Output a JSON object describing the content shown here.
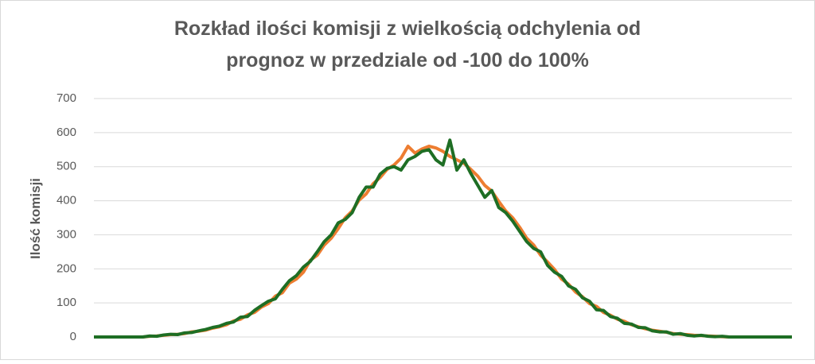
{
  "chart_data": {
    "type": "line",
    "title": [
      "Rozkład ilości komisji z wielkością odchylenia od",
      "prognoz w przedziale od -100 do 100%"
    ],
    "y_label": "Ilość komisji",
    "ylim": [
      0,
      700
    ],
    "yticks": [
      0,
      100,
      200,
      300,
      400,
      500,
      600,
      700
    ],
    "grid": true,
    "series": [
      {
        "color": "#ed7d31",
        "values": [
          0,
          0,
          0,
          0,
          0,
          0,
          0,
          0,
          2,
          3,
          5,
          7,
          8,
          10,
          15,
          17,
          20,
          26,
          30,
          36,
          47,
          52,
          65,
          72,
          88,
          98,
          120,
          130,
          158,
          170,
          190,
          225,
          240,
          270,
          290,
          318,
          350,
          370,
          402,
          420,
          450,
          468,
          492,
          505,
          525,
          560,
          540,
          552,
          560,
          555,
          545,
          530,
          520,
          510,
          492,
          472,
          445,
          428,
          398,
          370,
          350,
          322,
          290,
          270,
          240,
          220,
          198,
          170,
          155,
          132,
          118,
          98,
          90,
          72,
          64,
          52,
          46,
          36,
          30,
          24,
          20,
          17,
          14,
          10,
          8,
          7,
          5,
          4,
          3,
          2,
          1,
          0,
          0,
          0,
          0,
          0,
          0,
          0,
          0,
          0,
          0
        ]
      },
      {
        "color": "#1e6e24",
        "values": [
          0,
          0,
          0,
          0,
          0,
          0,
          0,
          0,
          3,
          2,
          6,
          8,
          7,
          12,
          13,
          18,
          22,
          28,
          32,
          40,
          44,
          58,
          60,
          78,
          92,
          105,
          112,
          140,
          165,
          180,
          205,
          222,
          250,
          280,
          300,
          335,
          345,
          365,
          410,
          440,
          440,
          478,
          495,
          500,
          490,
          520,
          530,
          545,
          550,
          520,
          505,
          578,
          490,
          520,
          480,
          445,
          410,
          430,
          380,
          365,
          340,
          310,
          280,
          260,
          250,
          210,
          190,
          178,
          150,
          140,
          115,
          105,
          80,
          78,
          60,
          55,
          40,
          38,
          28,
          27,
          18,
          15,
          15,
          8,
          10,
          5,
          3,
          5,
          2,
          1,
          2,
          0,
          0,
          0,
          0,
          0,
          0,
          0,
          0,
          0,
          0
        ]
      }
    ]
  }
}
